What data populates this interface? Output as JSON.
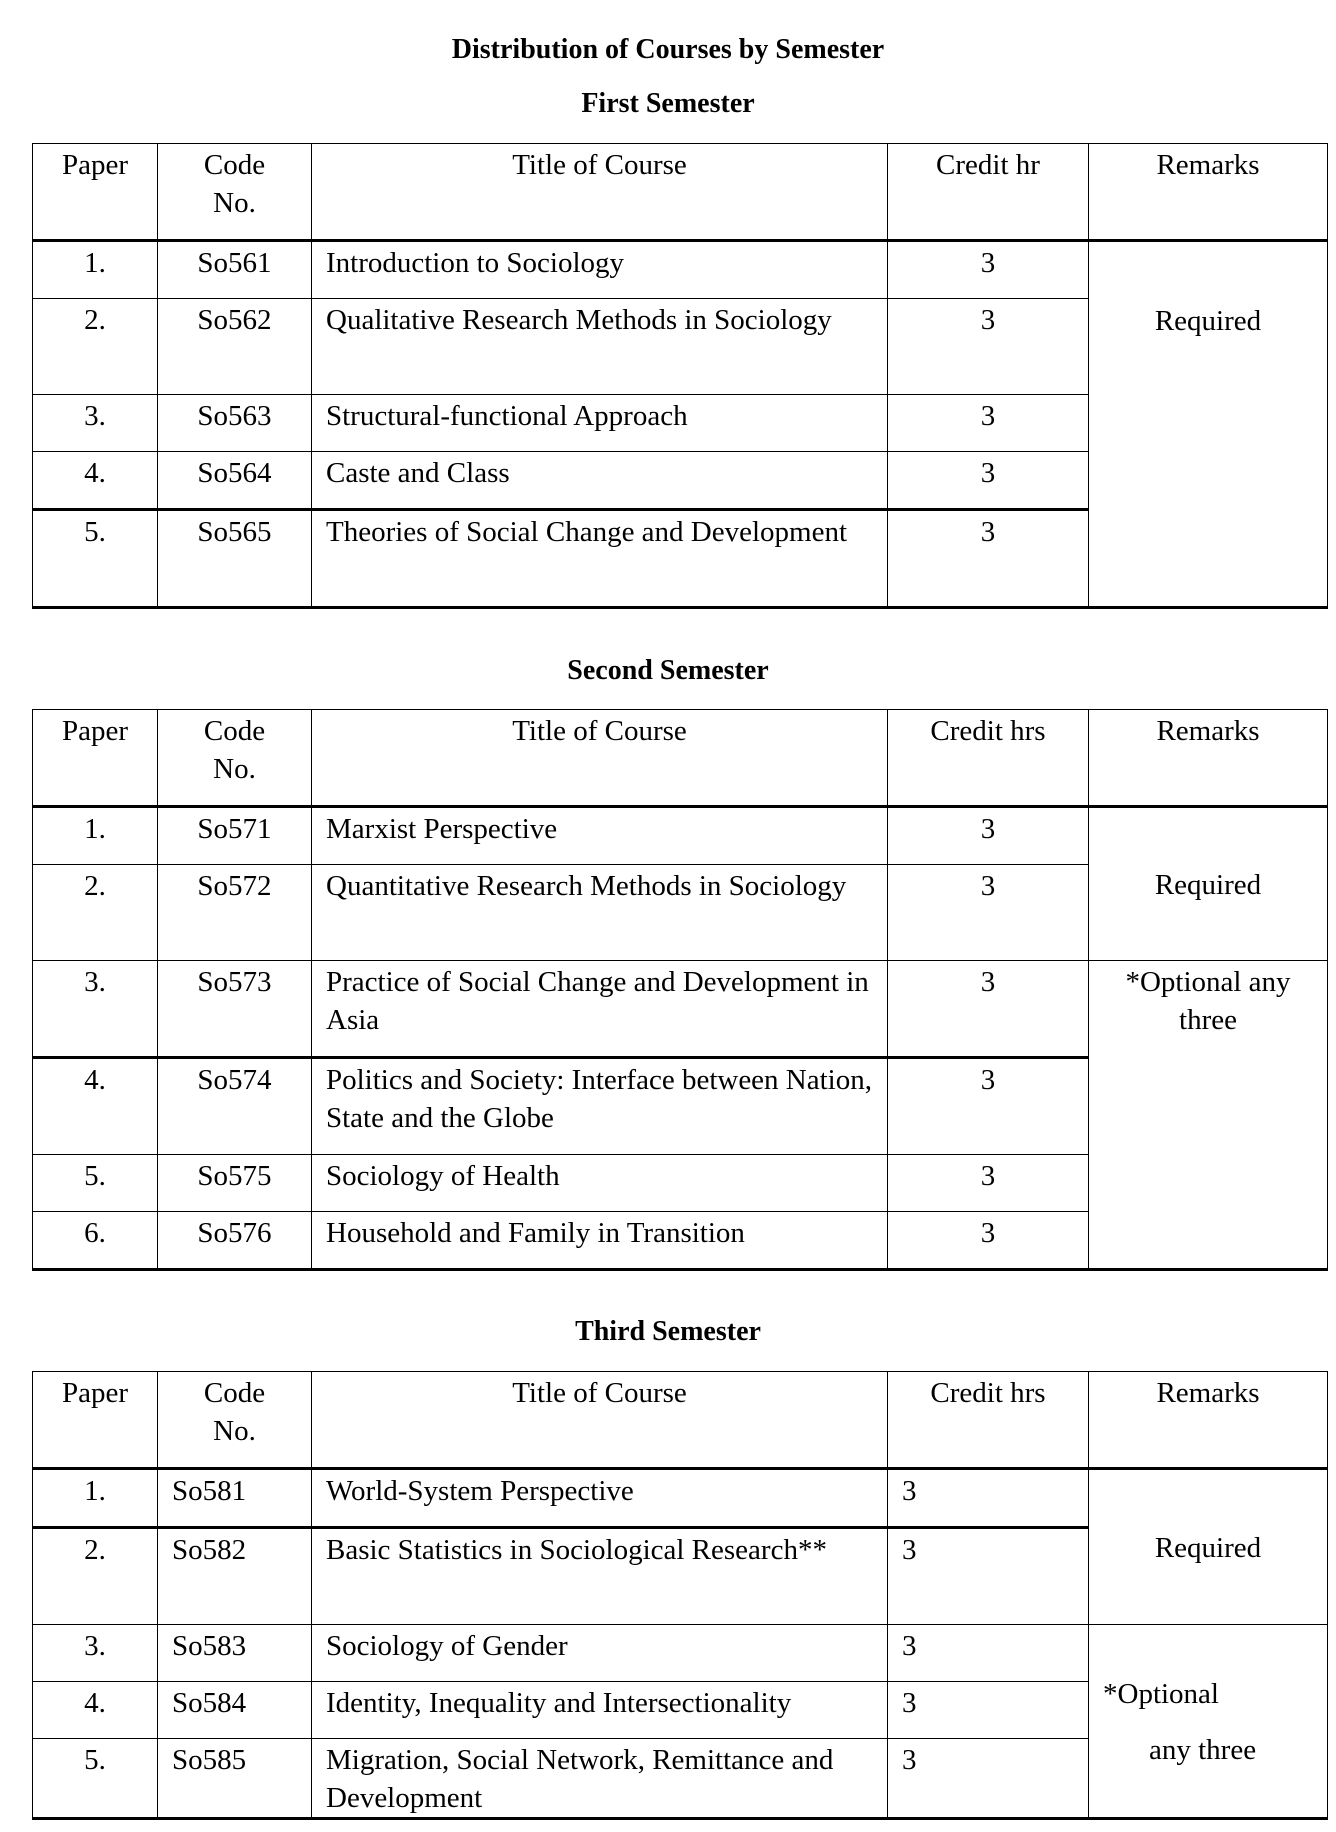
{
  "title": "Distribution of Courses by Semester",
  "headers": {
    "paper": "Paper",
    "code": "Code No.",
    "title": "Title of Course",
    "remarks": "Remarks"
  },
  "semesters": [
    {
      "heading": "First Semester",
      "credit_header": "Credit hr",
      "credit_align": "center",
      "rows": [
        {
          "paper": "1.",
          "code": "So561",
          "title": "Introduction to Sociology",
          "credit": "3"
        },
        {
          "paper": "2.",
          "code": "So562",
          "title": "Qualitative Research Methods in Sociology",
          "credit": "3"
        },
        {
          "paper": "3.",
          "code": "So563",
          "title": "Structural-functional Approach",
          "credit": "3"
        },
        {
          "paper": "4.",
          "code": "So564",
          "title": "Caste and Class",
          "credit": "3"
        },
        {
          "paper": "5.",
          "code": "So565",
          "title": "Theories of Social Change and Development",
          "credit": "3"
        }
      ],
      "remarks": [
        {
          "text": "Required",
          "rowspan": 5
        }
      ]
    },
    {
      "heading": "Second Semester",
      "credit_header": "Credit hrs",
      "credit_align": "center",
      "rows": [
        {
          "paper": "1.",
          "code": "So571",
          "title": "Marxist Perspective",
          "credit": "3"
        },
        {
          "paper": "2.",
          "code": "So572",
          "title": "Quantitative Research Methods in Sociology",
          "credit": "3"
        },
        {
          "paper": "3.",
          "code": "So573",
          "title": "Practice of Social Change and Development in Asia",
          "credit": "3"
        },
        {
          "paper": "4.",
          "code": "So574",
          "title": "Politics and Society: Interface between Nation, State and the Globe",
          "credit": "3"
        },
        {
          "paper": "5.",
          "code": "So575",
          "title": "Sociology of Health",
          "credit": "3"
        },
        {
          "paper": "6.",
          "code": "So576",
          "title": "Household and Family in Transition",
          "credit": "3"
        }
      ],
      "remarks": [
        {
          "text": "Required",
          "rowspan": 2
        },
        {
          "text": "*Optional any three",
          "rowspan": 4
        }
      ]
    },
    {
      "heading": "Third Semester",
      "credit_header": "Credit hrs",
      "credit_align": "left",
      "rows": [
        {
          "paper": "1.",
          "code": "So581",
          "title": "World-System Perspective",
          "credit": "3"
        },
        {
          "paper": "2.",
          "code": "So582",
          "title": "Basic Statistics in Sociological Research**",
          "credit": "3"
        },
        {
          "paper": "3.",
          "code": "So583",
          "title": "Sociology of Gender",
          "credit": "3"
        },
        {
          "paper": "4.",
          "code": "So584",
          "title": "Identity, Inequality and Intersectionality",
          "credit": "3"
        },
        {
          "paper": "5.",
          "code": "So585",
          "title": "Migration, Social Network, Remittance and Development",
          "credit": "3"
        }
      ],
      "remarks": [
        {
          "text": "Required",
          "rowspan": 2
        },
        {
          "text": "*Optional",
          "text2": "any three",
          "rowspan": 3
        }
      ]
    }
  ]
}
